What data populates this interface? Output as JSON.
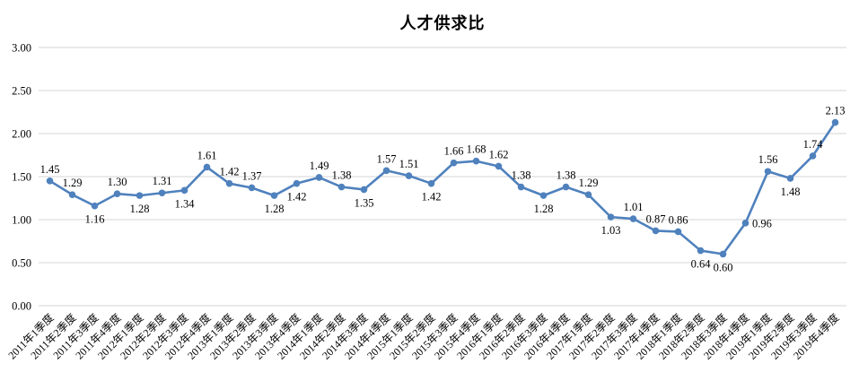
{
  "chart_data": {
    "type": "line",
    "title": "人才供求比",
    "legend": "none",
    "grid": "horizontal-only",
    "x_tick_rotation": -45,
    "ylim": [
      0.0,
      3.0
    ],
    "y_tick_labels": [
      "0.00",
      "0.50",
      "1.00",
      "1.50",
      "2.00",
      "2.50",
      "3.00"
    ],
    "categories": [
      "2011年1季度",
      "2011年2季度",
      "2011年3季度",
      "2011年4季度",
      "2012年1季度",
      "2012年2季度",
      "2012年3季度",
      "2012年4季度",
      "2013年1季度",
      "2013年2季度",
      "2013年3季度",
      "2013年4季度",
      "2014年1季度",
      "2014年2季度",
      "2014年3季度",
      "2014年4季度",
      "2015年1季度",
      "2015年2季度",
      "2015年3季度",
      "2015年4季度",
      "2016年1季度",
      "2016年2季度",
      "2016年3季度",
      "2016年4季度",
      "2017年1季度",
      "2017年2季度",
      "2017年3季度",
      "2017年4季度",
      "2018年1季度",
      "2018年2季度",
      "2018年3季度",
      "2018年4季度",
      "2019年1季度",
      "2019年2季度",
      "2019年3季度",
      "2019年4季度"
    ],
    "series": [
      {
        "name": "人才供求比",
        "values": [
          1.45,
          1.29,
          1.16,
          1.3,
          1.28,
          1.31,
          1.34,
          1.61,
          1.42,
          1.37,
          1.28,
          1.42,
          1.49,
          1.38,
          1.35,
          1.57,
          1.51,
          1.42,
          1.66,
          1.68,
          1.62,
          1.38,
          1.28,
          1.38,
          1.29,
          1.03,
          1.01,
          0.87,
          0.86,
          0.64,
          0.6,
          0.96,
          1.56,
          1.48,
          1.74,
          2.13
        ],
        "point_labels": [
          "1.45",
          "1.29",
          "1.16",
          "1.30",
          "1.28",
          "1.31",
          "1.34",
          "1.61",
          "1.42",
          "1.37",
          "1.28",
          "1.42",
          "1.49",
          "1.38",
          "1.35",
          "1.57",
          "1.51",
          "1.42",
          "1.66",
          "1.68",
          "1.62",
          "1.38",
          "1.28",
          "1.38",
          "1.29",
          "1.03",
          "1.01",
          "0.87",
          "0.86",
          "0.64",
          "0.60",
          "0.96",
          "1.56",
          "1.48",
          "1.74",
          "2.13"
        ],
        "label_positions": [
          "above",
          "above",
          "below",
          "above",
          "below",
          "above",
          "below",
          "above",
          "above",
          "above",
          "below",
          "below",
          "above",
          "above",
          "below",
          "above",
          "above",
          "below",
          "above",
          "above",
          "above",
          "above",
          "below",
          "above",
          "above",
          "below",
          "above",
          "above",
          "above",
          "below",
          "below",
          "right",
          "above",
          "below",
          "above",
          "above"
        ]
      }
    ],
    "colors": {
      "line": "#4F81BD",
      "marker": "#4F81BD",
      "gridline": "#D6D6D6",
      "text": "#000000",
      "background": "#FFFFFF"
    }
  }
}
